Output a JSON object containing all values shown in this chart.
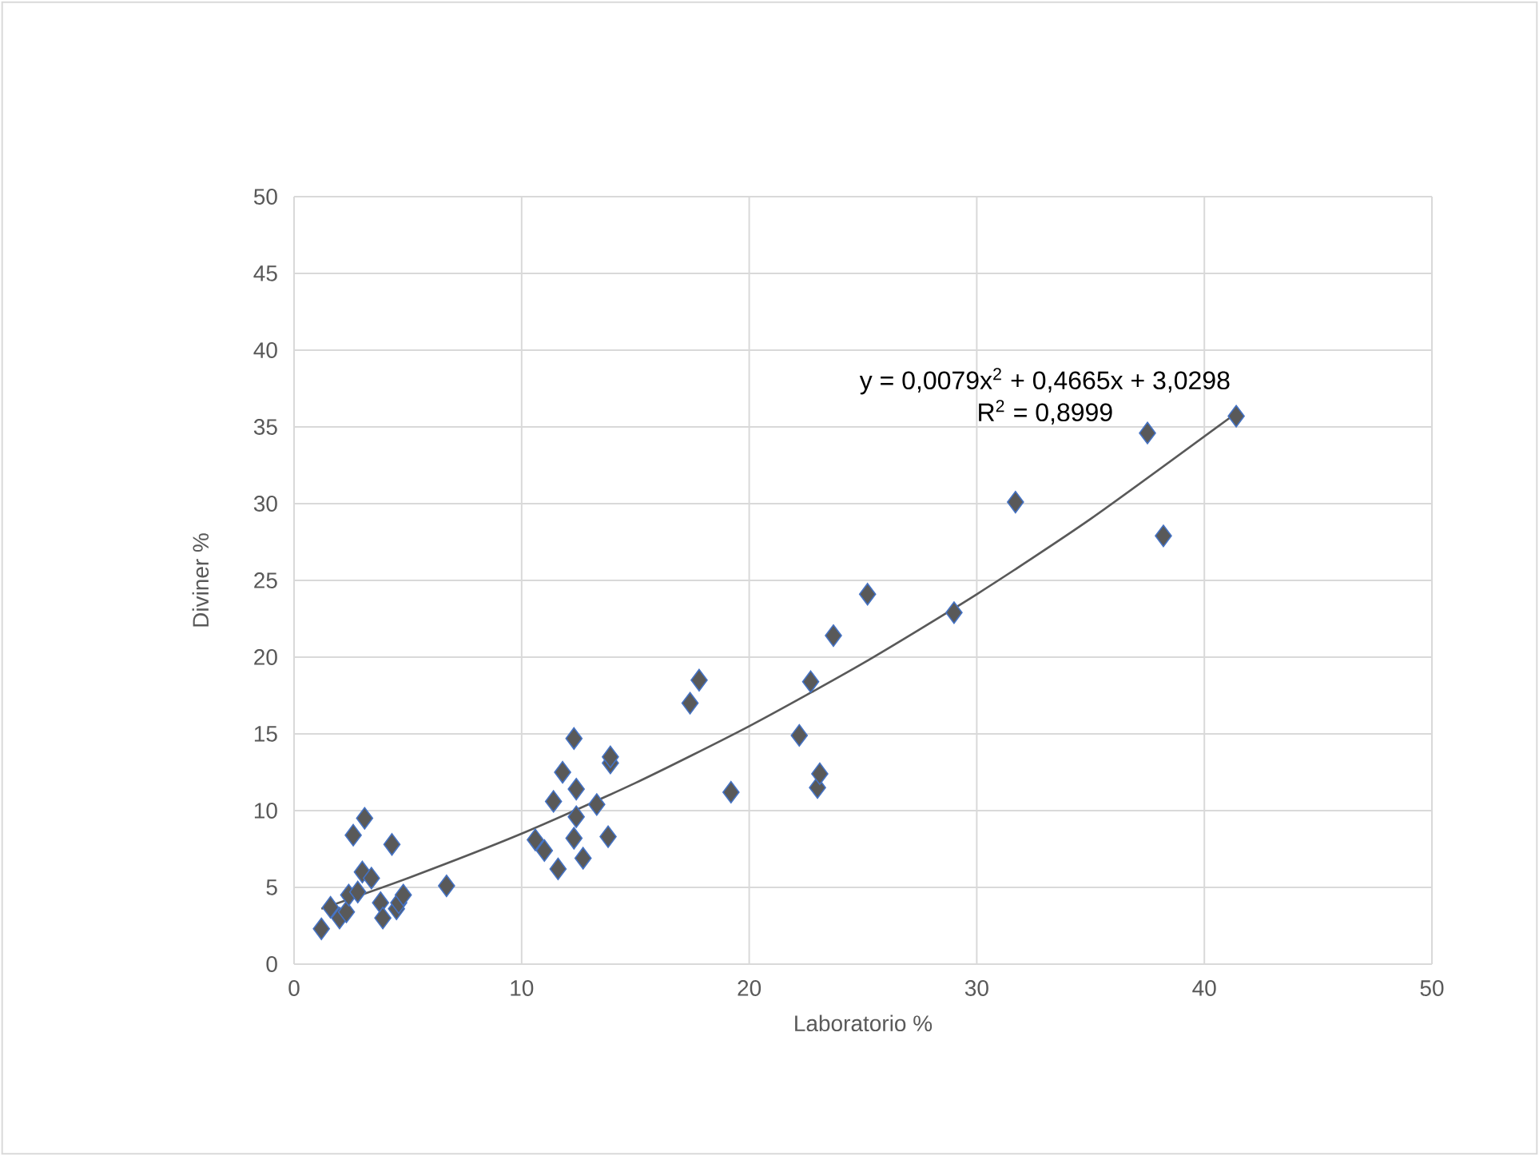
{
  "chart_data": {
    "type": "scatter",
    "xlabel": "Laboratorio %",
    "ylabel": "Diviner %",
    "xlim": [
      0,
      50
    ],
    "ylim": [
      0,
      50
    ],
    "xticks": [
      0,
      10,
      20,
      30,
      40,
      50
    ],
    "yticks": [
      0,
      5,
      10,
      15,
      20,
      25,
      30,
      35,
      40,
      45,
      50
    ],
    "grid": true,
    "marker": "diamond",
    "annotations": [
      "y = 0,0079x$^{2}$ + 0,4665x + 3,0298",
      "R$^{2}$ = 0,8999"
    ],
    "series": [
      {
        "color": "#595959",
        "x": [
          1.2,
          1.6,
          2.0,
          2.3,
          2.4,
          2.6,
          2.8,
          3.0,
          3.1,
          3.4,
          3.8,
          3.9,
          4.3,
          4.5,
          4.6,
          4.8,
          6.7,
          10.6,
          11.0,
          11.4,
          11.6,
          11.8,
          12.3,
          12.3,
          12.4,
          12.4,
          12.7,
          13.3,
          13.8,
          13.9,
          13.9,
          17.4,
          17.8,
          19.2,
          22.2,
          22.7,
          23.0,
          23.1,
          23.7,
          25.2,
          29.0,
          31.7,
          37.5,
          38.2,
          41.4
        ],
        "values": [
          2.3,
          3.7,
          3.0,
          3.4,
          4.5,
          8.4,
          4.7,
          6.0,
          9.5,
          5.6,
          4.0,
          3.0,
          7.8,
          3.6,
          4.0,
          4.5,
          5.1,
          8.1,
          7.4,
          10.6,
          6.2,
          12.5,
          14.7,
          8.2,
          9.6,
          11.4,
          6.9,
          10.4,
          8.3,
          13.1,
          13.5,
          17.0,
          18.5,
          11.2,
          14.9,
          18.4,
          11.5,
          12.4,
          21.4,
          24.1,
          22.9,
          30.1,
          34.6,
          27.9,
          35.7
        ]
      },
      {
        "type": "line",
        "color": "#595959",
        "marker": "none",
        "x": [
          1.2,
          5,
          10,
          15,
          20,
          25,
          30,
          35,
          41.4
        ],
        "values": [
          3.6,
          5.6,
          8.5,
          11.8,
          15.5,
          19.6,
          24.1,
          29.0,
          35.9
        ]
      }
    ]
  }
}
